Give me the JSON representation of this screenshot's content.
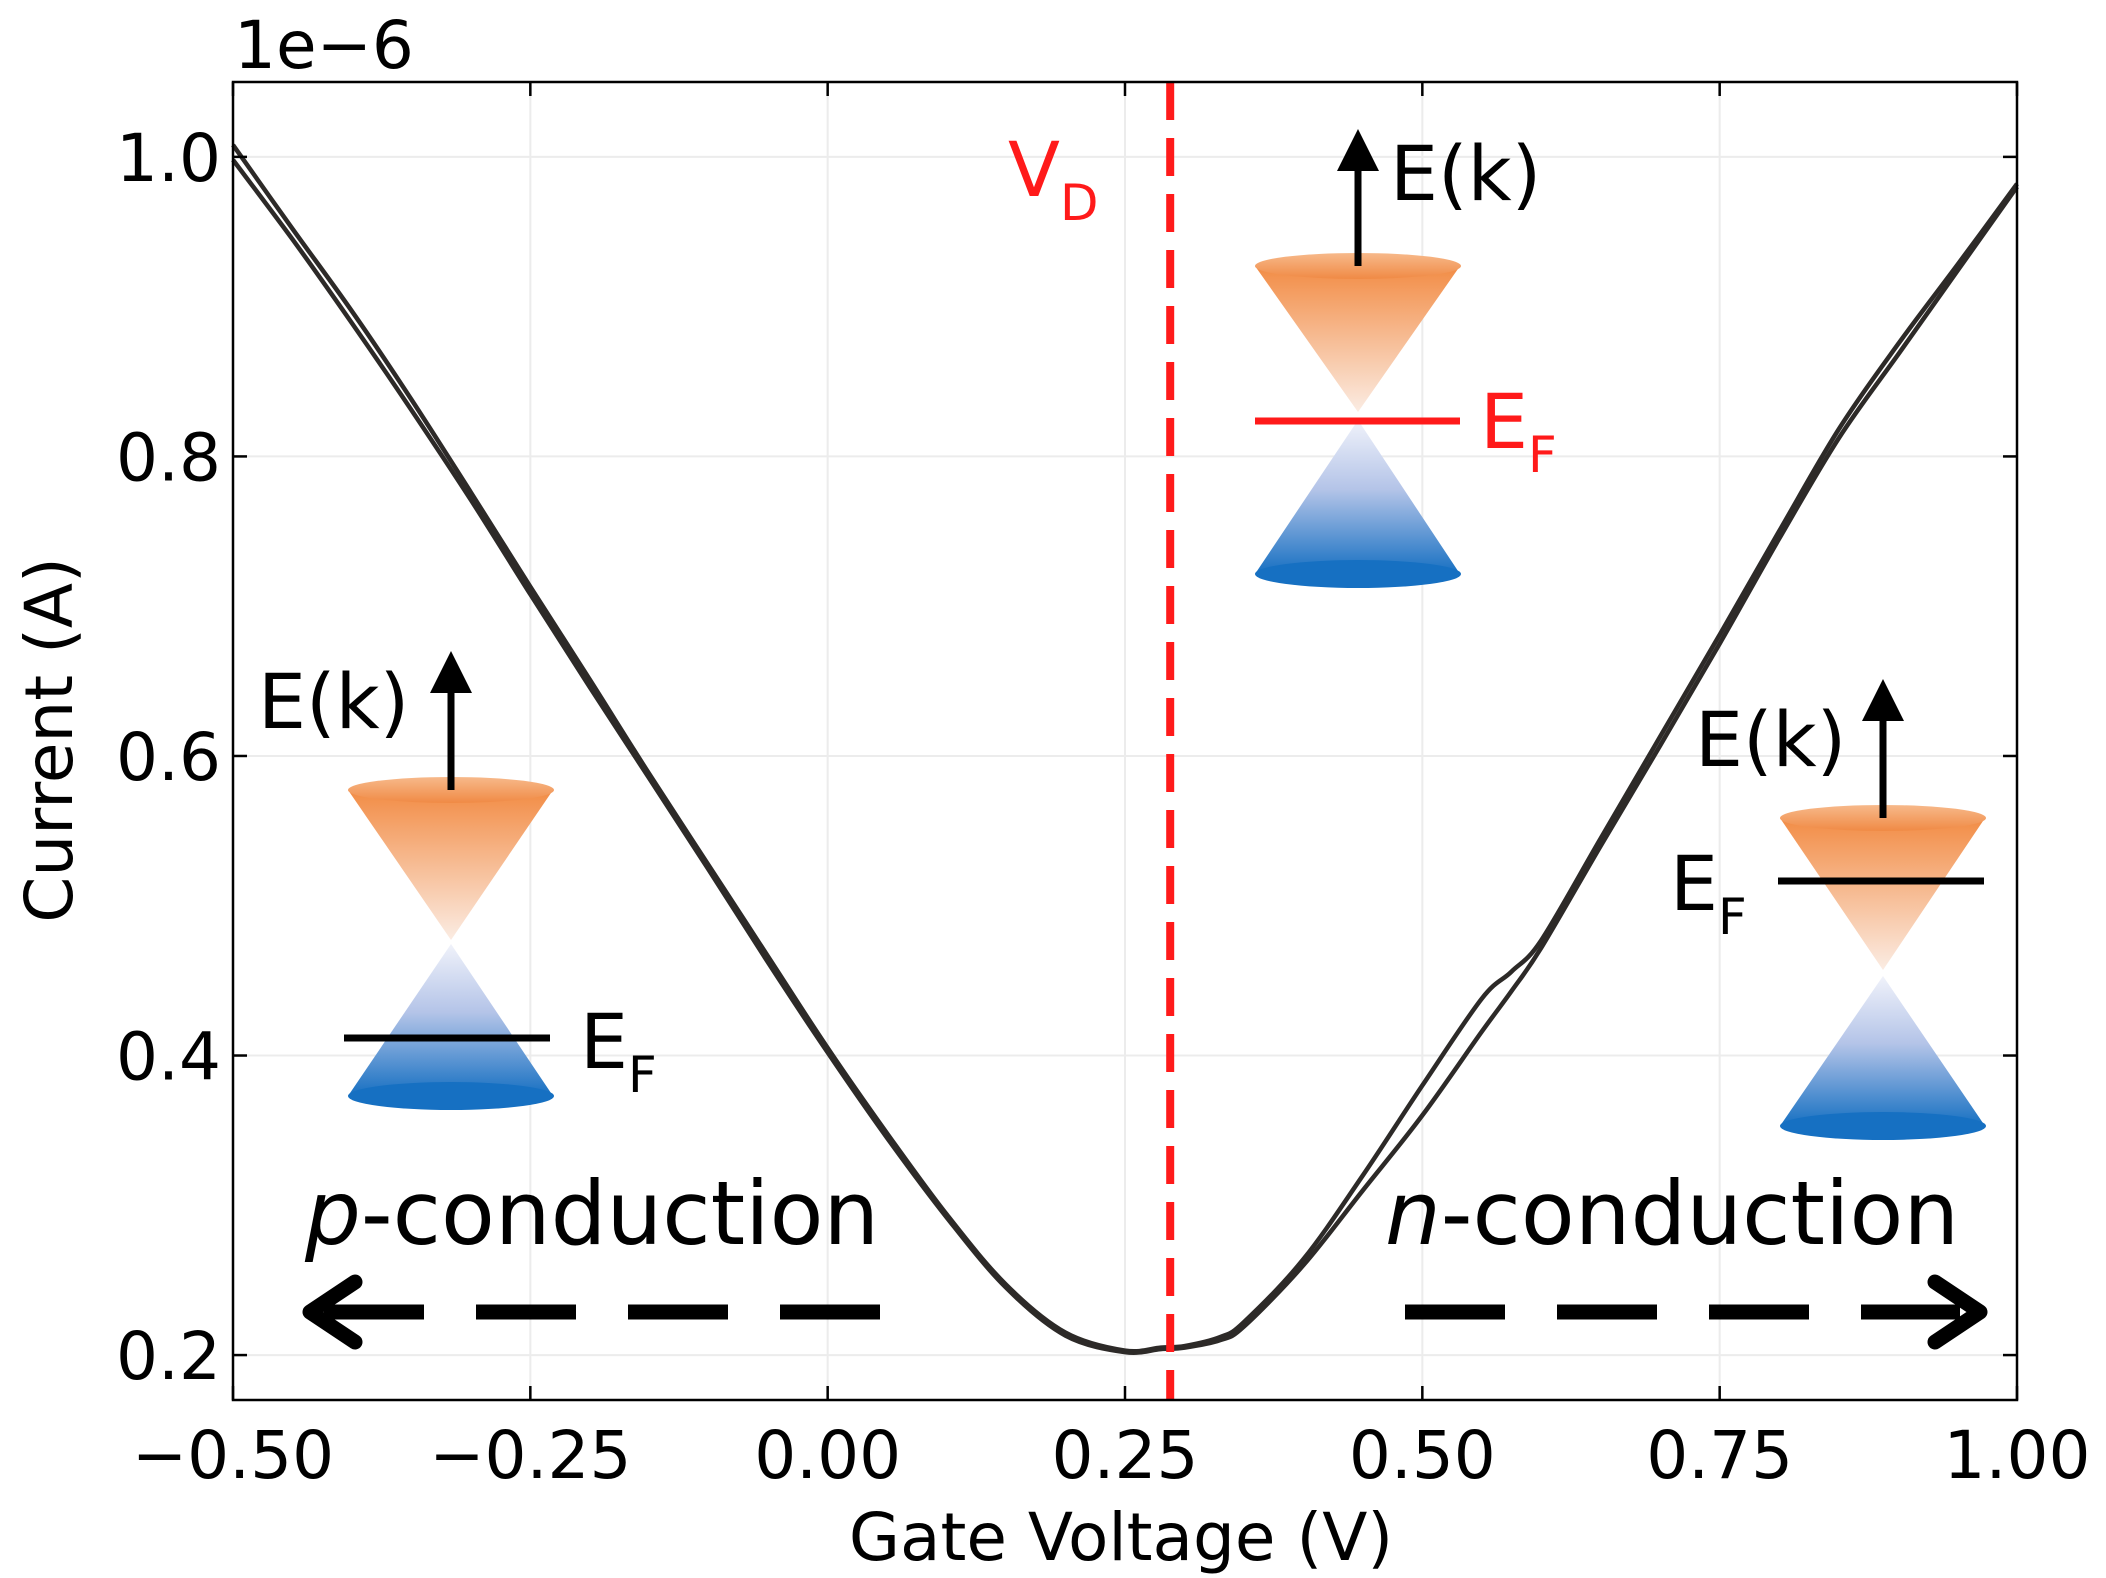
{
  "chart_data": {
    "type": "line",
    "xlabel": "Gate Voltage (V)",
    "ylabel": "Current (A)",
    "offset_text": "1e−6",
    "xlim": [
      -0.5,
      1.0
    ],
    "ylim": [
      0.17,
      1.05
    ],
    "y_scale_factor": 1e-06,
    "grid": true,
    "x_ticks": [
      -0.5,
      -0.25,
      0.0,
      0.25,
      0.5,
      0.75,
      1.0
    ],
    "x_tick_labels": [
      "−0.50",
      "−0.25",
      "0.00",
      "0.25",
      "0.50",
      "0.75",
      "1.00"
    ],
    "y_ticks": [
      0.2,
      0.4,
      0.6,
      0.8,
      1.0
    ],
    "y_tick_labels": [
      "0.2",
      "0.4",
      "0.6",
      "0.8",
      "1.0"
    ],
    "series": [
      {
        "color": "#2d2a28",
        "x": [
          -0.5,
          -0.45,
          -0.4,
          -0.35,
          -0.3,
          -0.25,
          -0.2,
          -0.15,
          -0.1,
          -0.05,
          0.0,
          0.05,
          0.1,
          0.15,
          0.2,
          0.25,
          0.28,
          0.3,
          0.33,
          0.35,
          0.4,
          0.45,
          0.5,
          0.55,
          0.575,
          0.6,
          0.65,
          0.7,
          0.75,
          0.8,
          0.85,
          0.9,
          0.95,
          1.0
        ],
        "y": [
          1.008,
          0.952,
          0.897,
          0.838,
          0.776,
          0.713,
          0.651,
          0.588,
          0.527,
          0.466,
          0.405,
          0.348,
          0.294,
          0.247,
          0.215,
          0.203,
          0.205,
          0.206,
          0.212,
          0.222,
          0.264,
          0.32,
          0.38,
          0.438,
          0.456,
          0.477,
          0.545,
          0.613,
          0.681,
          0.75,
          0.818,
          0.875,
          0.928,
          0.982
        ]
      },
      {
        "color": "#2d2a28",
        "x": [
          -0.5,
          -0.45,
          -0.4,
          -0.35,
          -0.3,
          -0.25,
          -0.2,
          -0.15,
          -0.1,
          -0.05,
          0.0,
          0.05,
          0.1,
          0.15,
          0.2,
          0.25,
          0.28,
          0.3,
          0.33,
          0.35,
          0.4,
          0.45,
          0.5,
          0.55,
          0.575,
          0.6,
          0.65,
          0.7,
          0.75,
          0.8,
          0.85,
          0.9,
          0.95,
          1.0
        ],
        "y": [
          0.998,
          0.945,
          0.889,
          0.831,
          0.771,
          0.708,
          0.646,
          0.585,
          0.524,
          0.462,
          0.402,
          0.345,
          0.292,
          0.245,
          0.213,
          0.202,
          0.204,
          0.205,
          0.21,
          0.219,
          0.26,
          0.31,
          0.36,
          0.416,
          0.443,
          0.472,
          0.54,
          0.607,
          0.675,
          0.745,
          0.812,
          0.868,
          0.924,
          0.98
        ]
      }
    ],
    "dirac_line": {
      "x": 0.288,
      "color": "#ff1a1a",
      "label": "V",
      "label_sub": "D"
    },
    "annotations": {
      "ek_label": "E(k)",
      "ef_label": "E",
      "ef_sub": "F",
      "p_italic": "p",
      "n_italic": "n",
      "conduction_suffix": "-conduction"
    },
    "colors": {
      "upper_cone": "#f28c45",
      "lower_cone": "#1670c2",
      "fermi_center": "#ff1a1a",
      "fermi_side": "#000000"
    }
  }
}
